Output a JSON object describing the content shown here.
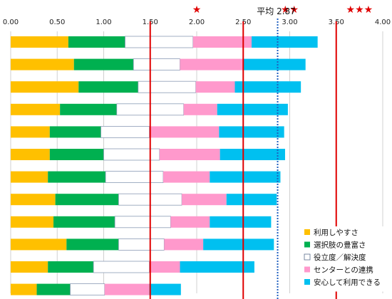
{
  "chart_data": {
    "type": "bar",
    "orientation": "horizontal",
    "stacked": true,
    "xlim": [
      0,
      4
    ],
    "x_ticks": [
      "0.00",
      "0.50",
      "1.00",
      "1.50",
      "2.00",
      "2.50",
      "3.00",
      "3.50",
      "4.00"
    ],
    "grid": true,
    "legend_position": "bottom-right",
    "series": [
      {
        "name": "利用しやすさ",
        "color": "#ffc000",
        "values": [
          0.62,
          0.68,
          0.73,
          0.53,
          0.42,
          0.42,
          0.4,
          0.48,
          0.46,
          0.6,
          0.4,
          0.28
        ]
      },
      {
        "name": "選択肢の豊富さ",
        "color": "#00b050",
        "values": [
          0.61,
          0.64,
          0.64,
          0.61,
          0.55,
          0.58,
          0.62,
          0.68,
          0.66,
          0.56,
          0.49,
          0.36
        ]
      },
      {
        "name": "役立度／解決度",
        "color": "#ffffff",
        "values": [
          0.73,
          0.5,
          0.62,
          0.72,
          0.52,
          0.6,
          0.62,
          0.68,
          0.6,
          0.49,
          0.6,
          0.37
        ]
      },
      {
        "name": "センターとの連携",
        "color": "#ff99cc",
        "values": [
          0.63,
          0.68,
          0.42,
          0.36,
          0.75,
          0.65,
          0.5,
          0.48,
          0.42,
          0.42,
          0.33,
          0.48
        ]
      },
      {
        "name": "安心して利用できる",
        "color": "#00c0f0",
        "values": [
          0.71,
          0.67,
          0.71,
          0.76,
          0.7,
          0.7,
          0.76,
          0.54,
          0.66,
          0.76,
          0.8,
          0.34
        ]
      }
    ],
    "reference_lines": [
      {
        "value": 1.5,
        "color": "#e00000",
        "style": "solid"
      },
      {
        "value": 2.5,
        "color": "#e00000",
        "style": "solid"
      },
      {
        "value": 3.5,
        "color": "#e00000",
        "style": "solid"
      },
      {
        "value": 2.87,
        "color": "#1f5fbf",
        "style": "dotted"
      }
    ],
    "annotations": [
      {
        "text": "★",
        "x": 2.0
      },
      {
        "text": "★★",
        "x": 3.0
      },
      {
        "text": "★★★",
        "x": 3.75
      },
      {
        "text": "平均 2.87",
        "x": 2.87
      }
    ]
  }
}
